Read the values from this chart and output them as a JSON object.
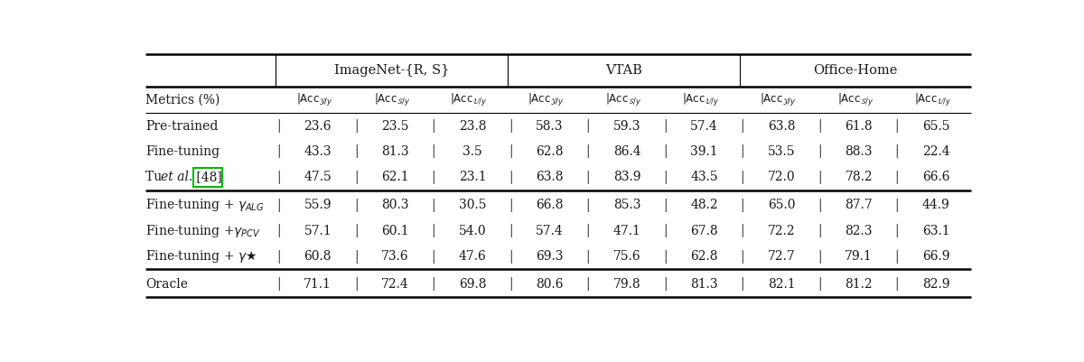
{
  "fig_width": 12.0,
  "fig_height": 4.01,
  "dpi": 100,
  "bg_color": "#ffffff",
  "group_headers": [
    "ImageNet-{R, S}",
    "VTAB",
    "Office-Home"
  ],
  "row_groups": [
    {
      "rows": [
        [
          "Pre-trained",
          "23.6",
          "23.5",
          "23.8",
          "58.3",
          "59.3",
          "57.4",
          "63.8",
          "61.8",
          "65.5"
        ],
        [
          "Fine-tuning",
          "43.3",
          "81.3",
          "3.5",
          "62.8",
          "86.4",
          "39.1",
          "53.5",
          "88.3",
          "22.4"
        ],
        [
          "Tu_etal_48",
          "47.5",
          "62.1",
          "23.1",
          "63.8",
          "83.9",
          "43.5",
          "72.0",
          "78.2",
          "66.6"
        ]
      ]
    },
    {
      "rows": [
        [
          "gamma_ALG",
          "55.9",
          "80.3",
          "30.5",
          "66.8",
          "85.3",
          "48.2",
          "65.0",
          "87.7",
          "44.9"
        ],
        [
          "gamma_PCV",
          "57.1",
          "60.1",
          "54.0",
          "57.4",
          "47.1",
          "67.8",
          "72.2",
          "82.3",
          "63.1"
        ],
        [
          "gamma_star",
          "60.8",
          "73.6",
          "47.6",
          "69.3",
          "75.6",
          "62.8",
          "72.7",
          "79.1",
          "66.9"
        ]
      ]
    },
    {
      "rows": [
        [
          "Oracle",
          "71.1",
          "72.4",
          "69.8",
          "80.6",
          "79.8",
          "81.3",
          "82.1",
          "81.2",
          "82.9"
        ]
      ]
    }
  ],
  "green_box_color": "#00bb00",
  "text_color": "#1a1a1a"
}
